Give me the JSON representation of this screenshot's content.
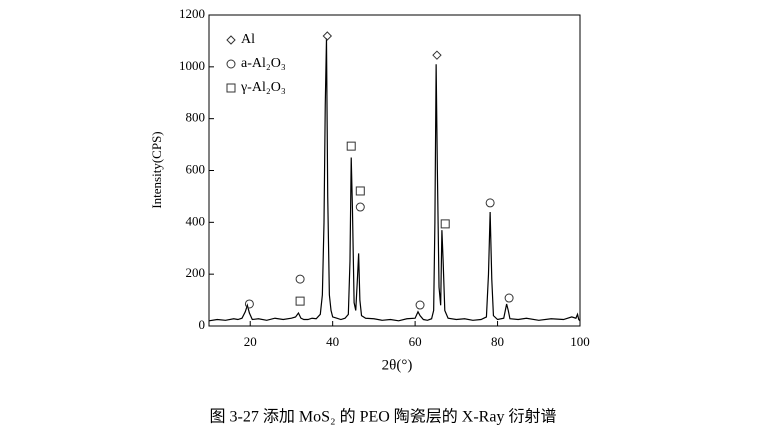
{
  "chart_data": {
    "type": "line",
    "caption": "图 3-27 添加 MoS₂ 的 PEO 陶瓷层的 X-Ray 衍射谱",
    "xlabel": "2θ(°)",
    "ylabel": "Intensity(CPS)",
    "xlim": [
      10,
      100
    ],
    "ylim": [
      0,
      1200
    ],
    "xticks": [
      20,
      40,
      60,
      80,
      100
    ],
    "yticks": [
      0,
      200,
      400,
      600,
      800,
      1000,
      1200
    ],
    "series": [
      {
        "color": "#000000",
        "x": [
          10,
          12,
          14,
          16,
          17,
          18,
          18.8,
          19.3,
          19.8,
          20.5,
          22,
          24,
          26,
          28,
          30,
          31,
          31.7,
          32.3,
          33,
          34,
          35,
          36,
          37,
          37.5,
          37.9,
          38.2,
          38.5,
          38.8,
          39.2,
          39.6,
          40,
          41,
          42,
          43,
          43.8,
          44.2,
          44.5,
          44.8,
          45.2,
          45.6,
          46,
          46.3,
          46.6,
          47,
          48,
          50,
          52,
          54,
          56,
          58,
          60,
          60.7,
          61.2,
          62,
          63,
          64,
          64.5,
          64.8,
          65.1,
          65.4,
          65.8,
          66.2,
          66.5,
          66.8,
          67.2,
          68,
          70,
          72,
          74,
          76,
          77.3,
          77.8,
          78.2,
          78.6,
          79,
          80,
          81.5,
          82.2,
          82.6,
          83,
          85,
          87,
          90,
          93,
          96,
          98,
          99,
          99.4,
          99.7,
          100
        ],
        "values": [
          20,
          25,
          22,
          28,
          25,
          30,
          55,
          80,
          50,
          25,
          28,
          22,
          30,
          25,
          30,
          35,
          50,
          30,
          25,
          25,
          30,
          28,
          45,
          120,
          400,
          850,
          1110,
          500,
          120,
          60,
          35,
          30,
          25,
          30,
          45,
          250,
          650,
          450,
          90,
          60,
          180,
          280,
          100,
          40,
          30,
          28,
          22,
          25,
          20,
          28,
          30,
          55,
          40,
          25,
          22,
          28,
          60,
          400,
          1010,
          600,
          150,
          80,
          370,
          250,
          60,
          30,
          25,
          28,
          22,
          25,
          35,
          200,
          440,
          180,
          40,
          25,
          30,
          85,
          60,
          28,
          25,
          30,
          22,
          28,
          25,
          35,
          30,
          45,
          25,
          20
        ]
      }
    ],
    "phases": [
      {
        "name": "Al",
        "marker": "diamond",
        "peaks": {
          "x": [
            38.7,
            65.3
          ],
          "y": [
            1119,
            1045
          ]
        }
      },
      {
        "name": "a-Al₂O₃",
        "marker": "circle",
        "peaks": {
          "x": [
            19.8,
            32.1,
            46.7,
            61.2,
            78.2,
            82.8
          ],
          "y": [
            85,
            181,
            459,
            81,
            475,
            108
          ]
        }
      },
      {
        "name": "γ-Al₂O₃",
        "marker": "square",
        "peaks": {
          "x": [
            32.1,
            44.5,
            46.7,
            67.3
          ],
          "y": [
            96,
            694,
            521,
            394
          ]
        }
      }
    ]
  }
}
